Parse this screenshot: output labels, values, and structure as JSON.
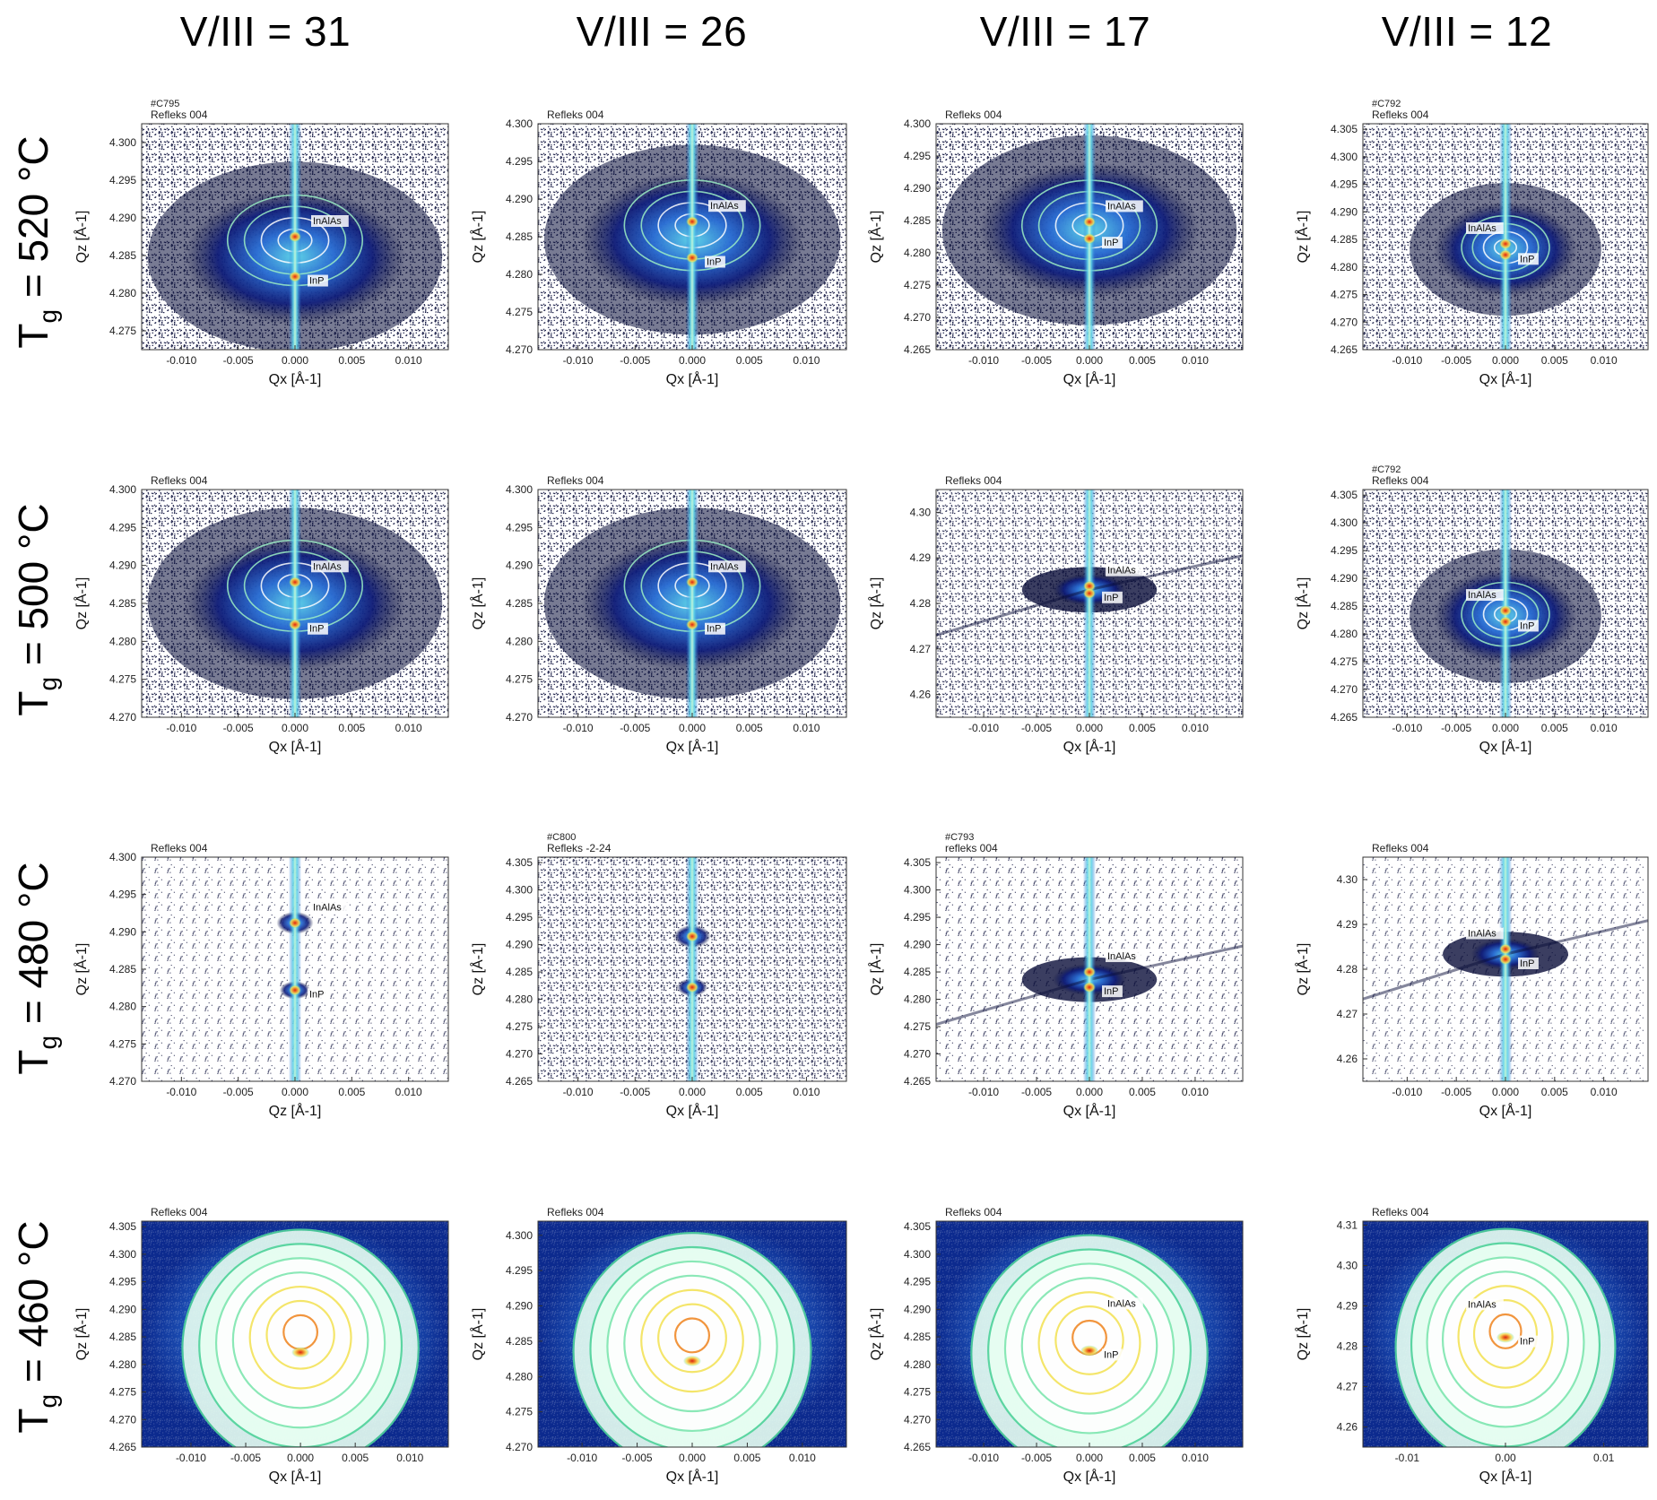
{
  "figure": {
    "column_headers": [
      "V/III = 31",
      "V/III = 26",
      "V/III = 17",
      "V/III = 12"
    ],
    "row_headers": [
      {
        "symbol": "T",
        "subscript": "g",
        "value": " = 520 °C"
      },
      {
        "symbol": "T",
        "subscript": "g",
        "value": " = 500 °C"
      },
      {
        "symbol": "T",
        "subscript": "g",
        "value": " = 480 °C"
      },
      {
        "symbol": "T",
        "subscript": "g",
        "value": " = 460 °C"
      }
    ],
    "colors": {
      "noise": "#0a0e3a",
      "low": "#0d1b7a",
      "mid": "#2a6fd6",
      "cyan": "#5fd4e8",
      "green": "#4fd39a",
      "yellow": "#f4e35a",
      "orange": "#f08a2a",
      "red": "#d8221a"
    }
  },
  "chart_data": [
    {
      "id": "r0c0",
      "type": "heatmap",
      "sample": "#C795",
      "reflection": "Refleks 004",
      "xlabel": "Qx [Å-1]",
      "ylabel": "Qz [Å-1]",
      "xticks": [
        "-0.010",
        "-0.005",
        "0.000",
        "0.005",
        "0.010"
      ],
      "yticks": [
        "4.275",
        "4.280",
        "4.285",
        "4.290",
        "4.295",
        "4.300"
      ],
      "xlim": [
        -0.0135,
        0.0135
      ],
      "ylim": [
        4.2725,
        4.3025
      ],
      "peaks": [
        {
          "label": "InAlAs",
          "qx": 0.0,
          "qz": 4.2875
        },
        {
          "label": "InP",
          "qx": 0.0,
          "qz": 4.2822
        }
      ],
      "noise_level": 0.55,
      "pattern": "butterfly"
    },
    {
      "id": "r0c1",
      "type": "heatmap",
      "sample": "",
      "reflection": "Refleks 004",
      "xlabel": "Qx [Å-1]",
      "ylabel": "Qz [Å-1]",
      "xticks": [
        "-0.010",
        "-0.005",
        "0.000",
        "0.005",
        "0.010"
      ],
      "yticks": [
        "4.270",
        "4.275",
        "4.280",
        "4.285",
        "4.290",
        "4.295",
        "4.300"
      ],
      "xlim": [
        -0.0135,
        0.0135
      ],
      "ylim": [
        4.27,
        4.3
      ],
      "peaks": [
        {
          "label": "InAlAs",
          "qx": 0.0,
          "qz": 4.287
        },
        {
          "label": "InP",
          "qx": 0.0,
          "qz": 4.2822
        }
      ],
      "noise_level": 0.5,
      "pattern": "butterfly"
    },
    {
      "id": "r0c2",
      "type": "heatmap",
      "sample": "",
      "reflection": "Refleks 004",
      "xlabel": "Qx [Å-1]",
      "ylabel": "Qz [Å-1]",
      "xticks": [
        "-0.010",
        "-0.005",
        "0.000",
        "0.005",
        "0.010"
      ],
      "yticks": [
        "4.265",
        "4.270",
        "4.275",
        "4.280",
        "4.285",
        "4.290",
        "4.295",
        "4.300"
      ],
      "xlim": [
        -0.0145,
        0.0145
      ],
      "ylim": [
        4.265,
        4.3
      ],
      "peaks": [
        {
          "label": "InAlAs",
          "qx": 0.0,
          "qz": 4.2848
        },
        {
          "label": "InP",
          "qx": 0.0,
          "qz": 4.2822
        }
      ],
      "noise_level": 0.55,
      "pattern": "butterfly"
    },
    {
      "id": "r0c3",
      "type": "heatmap",
      "sample": "#C792",
      "reflection": "Refleks 004",
      "xlabel": "Qx [Å-1]",
      "ylabel": "Qz [Å-1]",
      "xticks": [
        "-0.010",
        "-0.005",
        "0.000",
        "0.005",
        "0.010"
      ],
      "yticks": [
        "4.265",
        "4.270",
        "4.275",
        "4.280",
        "4.285",
        "4.290",
        "4.295",
        "4.300",
        "4.305"
      ],
      "xlim": [
        -0.0145,
        0.0145
      ],
      "ylim": [
        4.265,
        4.306
      ],
      "peaks": [
        {
          "label": "InAlAs",
          "qx": 0.0,
          "qz": 4.2842
        },
        {
          "label": "InP",
          "qx": 0.0,
          "qz": 4.2822
        }
      ],
      "noise_level": 0.45,
      "pattern": "compact"
    },
    {
      "id": "r1c0",
      "type": "heatmap",
      "sample": "",
      "reflection": "Refleks 004",
      "xlabel": "Qx [Å-1]",
      "ylabel": "Qz [Å-1]",
      "xticks": [
        "-0.010",
        "-0.005",
        "0.000",
        "0.005",
        "0.010"
      ],
      "yticks": [
        "4.270",
        "4.275",
        "4.280",
        "4.285",
        "4.290",
        "4.295",
        "4.300"
      ],
      "xlim": [
        -0.0135,
        0.0135
      ],
      "ylim": [
        4.27,
        4.3
      ],
      "peaks": [
        {
          "label": "InAlAs",
          "qx": 0.0,
          "qz": 4.2878
        },
        {
          "label": "InP",
          "qx": 0.0,
          "qz": 4.2822
        }
      ],
      "noise_level": 0.5,
      "pattern": "butterfly"
    },
    {
      "id": "r1c1",
      "type": "heatmap",
      "sample": "",
      "reflection": "Refleks 004",
      "xlabel": "Qx [Å-1]",
      "ylabel": "Qz [Å-1]",
      "xticks": [
        "-0.010",
        "-0.005",
        "0.000",
        "0.005",
        "0.010"
      ],
      "yticks": [
        "4.270",
        "4.275",
        "4.280",
        "4.285",
        "4.290",
        "4.295",
        "4.300"
      ],
      "xlim": [
        -0.0135,
        0.0135
      ],
      "ylim": [
        4.27,
        4.3
      ],
      "peaks": [
        {
          "label": "InAlAs",
          "qx": 0.0,
          "qz": 4.2878
        },
        {
          "label": "InP",
          "qx": 0.0,
          "qz": 4.2822
        }
      ],
      "noise_level": 0.5,
      "pattern": "butterfly"
    },
    {
      "id": "r1c2",
      "type": "heatmap",
      "sample": "",
      "reflection": "Refleks 004",
      "xlabel": "Qx [Å-1]",
      "ylabel": "Qz [Å-1]",
      "xticks": [
        "-0.010",
        "-0.005",
        "0.000",
        "0.005",
        "0.010"
      ],
      "yticks": [
        "4.26",
        "4.27",
        "4.28",
        "4.29",
        "4.30"
      ],
      "xlim": [
        -0.0145,
        0.0145
      ],
      "ylim": [
        4.255,
        4.305
      ],
      "peaks": [
        {
          "label": "InAlAs",
          "qx": 0.0,
          "qz": 4.2838
        },
        {
          "label": "InP",
          "qx": 0.0,
          "qz": 4.2822
        }
      ],
      "noise_level": 0.35,
      "pattern": "cross"
    },
    {
      "id": "r1c3",
      "type": "heatmap",
      "sample": "#C792",
      "reflection": "Refleks 004",
      "xlabel": "Qx [Å-1]",
      "ylabel": "Qz [Å-1]",
      "xticks": [
        "-0.010",
        "-0.005",
        "0.000",
        "0.005",
        "0.010"
      ],
      "yticks": [
        "4.265",
        "4.270",
        "4.275",
        "4.280",
        "4.285",
        "4.290",
        "4.295",
        "4.300",
        "4.305"
      ],
      "xlim": [
        -0.0145,
        0.0145
      ],
      "ylim": [
        4.265,
        4.306
      ],
      "peaks": [
        {
          "label": "InAlAs",
          "qx": 0.0,
          "qz": 4.2842
        },
        {
          "label": "InP",
          "qx": 0.0,
          "qz": 4.2822
        }
      ],
      "noise_level": 0.45,
      "pattern": "compact"
    },
    {
      "id": "r2c0",
      "type": "heatmap",
      "sample": "",
      "reflection": "Refleks 004",
      "xlabel": "Qz [Å-1]",
      "ylabel": "Qz [Å-1]",
      "xticks": [
        "-0.010",
        "-0.005",
        "0.000",
        "0.005",
        "0.010"
      ],
      "yticks": [
        "4.270",
        "4.275",
        "4.280",
        "4.285",
        "4.290",
        "4.295",
        "4.300"
      ],
      "xlim": [
        -0.0135,
        0.0135
      ],
      "ylim": [
        4.27,
        4.3
      ],
      "peaks": [
        {
          "label": "InAlAs",
          "qx": 0.0,
          "qz": 4.2912
        },
        {
          "label": "InP",
          "qx": 0.0,
          "qz": 4.2822
        }
      ],
      "noise_level": 0.2,
      "pattern": "rod"
    },
    {
      "id": "r2c1",
      "type": "heatmap",
      "sample": "#C800",
      "reflection": "Refleks -2-24",
      "xlabel": "Qx [Å-1]",
      "ylabel": "Qz [Å-1]",
      "xticks": [
        "-0.010",
        "-0.005",
        "0.000",
        "0.005",
        "0.010"
      ],
      "yticks": [
        "4.265",
        "4.270",
        "4.275",
        "4.280",
        "4.285",
        "4.290",
        "4.295",
        "4.300",
        "4.305"
      ],
      "xlim": [
        -0.0135,
        0.0135
      ],
      "ylim": [
        4.265,
        4.306
      ],
      "peaks": [
        {
          "label": "",
          "qx": 0.0,
          "qz": 4.2915
        },
        {
          "label": "",
          "qx": 0.0,
          "qz": 4.2822
        }
      ],
      "noise_level": 0.35,
      "pattern": "rod"
    },
    {
      "id": "r2c2",
      "type": "heatmap",
      "sample": "#C793",
      "reflection": "refleks 004",
      "xlabel": "Qx [Å-1]",
      "ylabel": "Qz [Å-1]",
      "xticks": [
        "-0.010",
        "-0.005",
        "0.000",
        "0.005",
        "0.010"
      ],
      "yticks": [
        "4.265",
        "4.270",
        "4.275",
        "4.280",
        "4.285",
        "4.290",
        "4.295",
        "4.300",
        "4.305"
      ],
      "xlim": [
        -0.0145,
        0.0145
      ],
      "ylim": [
        4.265,
        4.306
      ],
      "peaks": [
        {
          "label": "InAlAs",
          "qx": 0.0,
          "qz": 4.285
        },
        {
          "label": "InP",
          "qx": 0.0,
          "qz": 4.2822
        }
      ],
      "noise_level": 0.3,
      "pattern": "cross"
    },
    {
      "id": "r2c3",
      "type": "heatmap",
      "sample": "",
      "reflection": "Refleks 004",
      "xlabel": "Qx [Å-1]",
      "ylabel": "Qz [Å-1]",
      "xticks": [
        "-0.010",
        "-0.005",
        "0.000",
        "0.005",
        "0.010"
      ],
      "yticks": [
        "4.26",
        "4.27",
        "4.28",
        "4.29",
        "4.30"
      ],
      "xlim": [
        -0.0145,
        0.0145
      ],
      "ylim": [
        4.255,
        4.305
      ],
      "peaks": [
        {
          "label": "InAlAs",
          "qx": 0.0,
          "qz": 4.2845
        },
        {
          "label": "InP",
          "qx": 0.0,
          "qz": 4.2822
        }
      ],
      "noise_level": 0.15,
      "pattern": "cross"
    },
    {
      "id": "r3c0",
      "type": "heatmap",
      "sample": "",
      "reflection": "Refleks 004",
      "xlabel": "Qx [Å-1]",
      "ylabel": "Qz [Å-1]",
      "xticks": [
        "-0.010",
        "-0.005",
        "0.000",
        "0.005",
        "0.010"
      ],
      "yticks": [
        "4.265",
        "4.270",
        "4.275",
        "4.280",
        "4.285",
        "4.290",
        "4.295",
        "4.300",
        "4.305"
      ],
      "xlim": [
        -0.0145,
        0.0135
      ],
      "ylim": [
        4.265,
        4.306
      ],
      "peaks": [
        {
          "label": "",
          "qx": 0.0,
          "qz": 4.2905
        },
        {
          "label": "",
          "qx": 0.0,
          "qz": 4.2822
        }
      ],
      "noise_level": 0.0,
      "pattern": "broad"
    },
    {
      "id": "r3c1",
      "type": "heatmap",
      "sample": "",
      "reflection": "Refleks 004",
      "xlabel": "Qx [Å-1]",
      "ylabel": "Qz [Å-1]",
      "xticks": [
        "-0.010",
        "-0.005",
        "0.000",
        "0.005",
        "0.010"
      ],
      "yticks": [
        "4.270",
        "4.275",
        "4.280",
        "4.285",
        "4.290",
        "4.295",
        "4.300"
      ],
      "xlim": [
        -0.014,
        0.014
      ],
      "ylim": [
        4.27,
        4.302
      ],
      "peaks": [
        {
          "label": "",
          "qx": 0.0,
          "qz": 4.2902
        },
        {
          "label": "",
          "qx": 0.0,
          "qz": 4.2822
        }
      ],
      "noise_level": 0.0,
      "pattern": "broad"
    },
    {
      "id": "r3c2",
      "type": "heatmap",
      "sample": "",
      "reflection": "Refleks 004",
      "xlabel": "Qx [Å-1]",
      "ylabel": "Qz [Å-1]",
      "xticks": [
        "-0.010",
        "-0.005",
        "0.000",
        "0.005",
        "0.010"
      ],
      "yticks": [
        "4.265",
        "4.270",
        "4.275",
        "4.280",
        "4.285",
        "4.290",
        "4.295",
        "4.300",
        "4.305"
      ],
      "xlim": [
        -0.0145,
        0.0145
      ],
      "ylim": [
        4.265,
        4.306
      ],
      "peaks": [
        {
          "label": "InAlAs",
          "qx": 0.0,
          "qz": 4.2882
        },
        {
          "label": "InP",
          "qx": 0.0,
          "qz": 4.2825
        }
      ],
      "noise_level": 0.0,
      "pattern": "broad"
    },
    {
      "id": "r3c3",
      "type": "heatmap",
      "sample": "",
      "reflection": "Refleks 004",
      "xlabel": "Qx [Å-1]",
      "ylabel": "Qz [Å-1]",
      "xticks": [
        "-0.01",
        "0.00",
        "0.01"
      ],
      "yticks": [
        "4.26",
        "4.27",
        "4.28",
        "4.29",
        "4.30",
        "4.31"
      ],
      "xlim": [
        -0.0145,
        0.0145
      ],
      "ylim": [
        4.255,
        4.311
      ],
      "peaks": [
        {
          "label": "InAlAs",
          "qx": 0.0,
          "qz": 4.2865
        },
        {
          "label": "InP",
          "qx": 0.0,
          "qz": 4.2822
        }
      ],
      "noise_level": 0.0,
      "pattern": "broad"
    }
  ]
}
